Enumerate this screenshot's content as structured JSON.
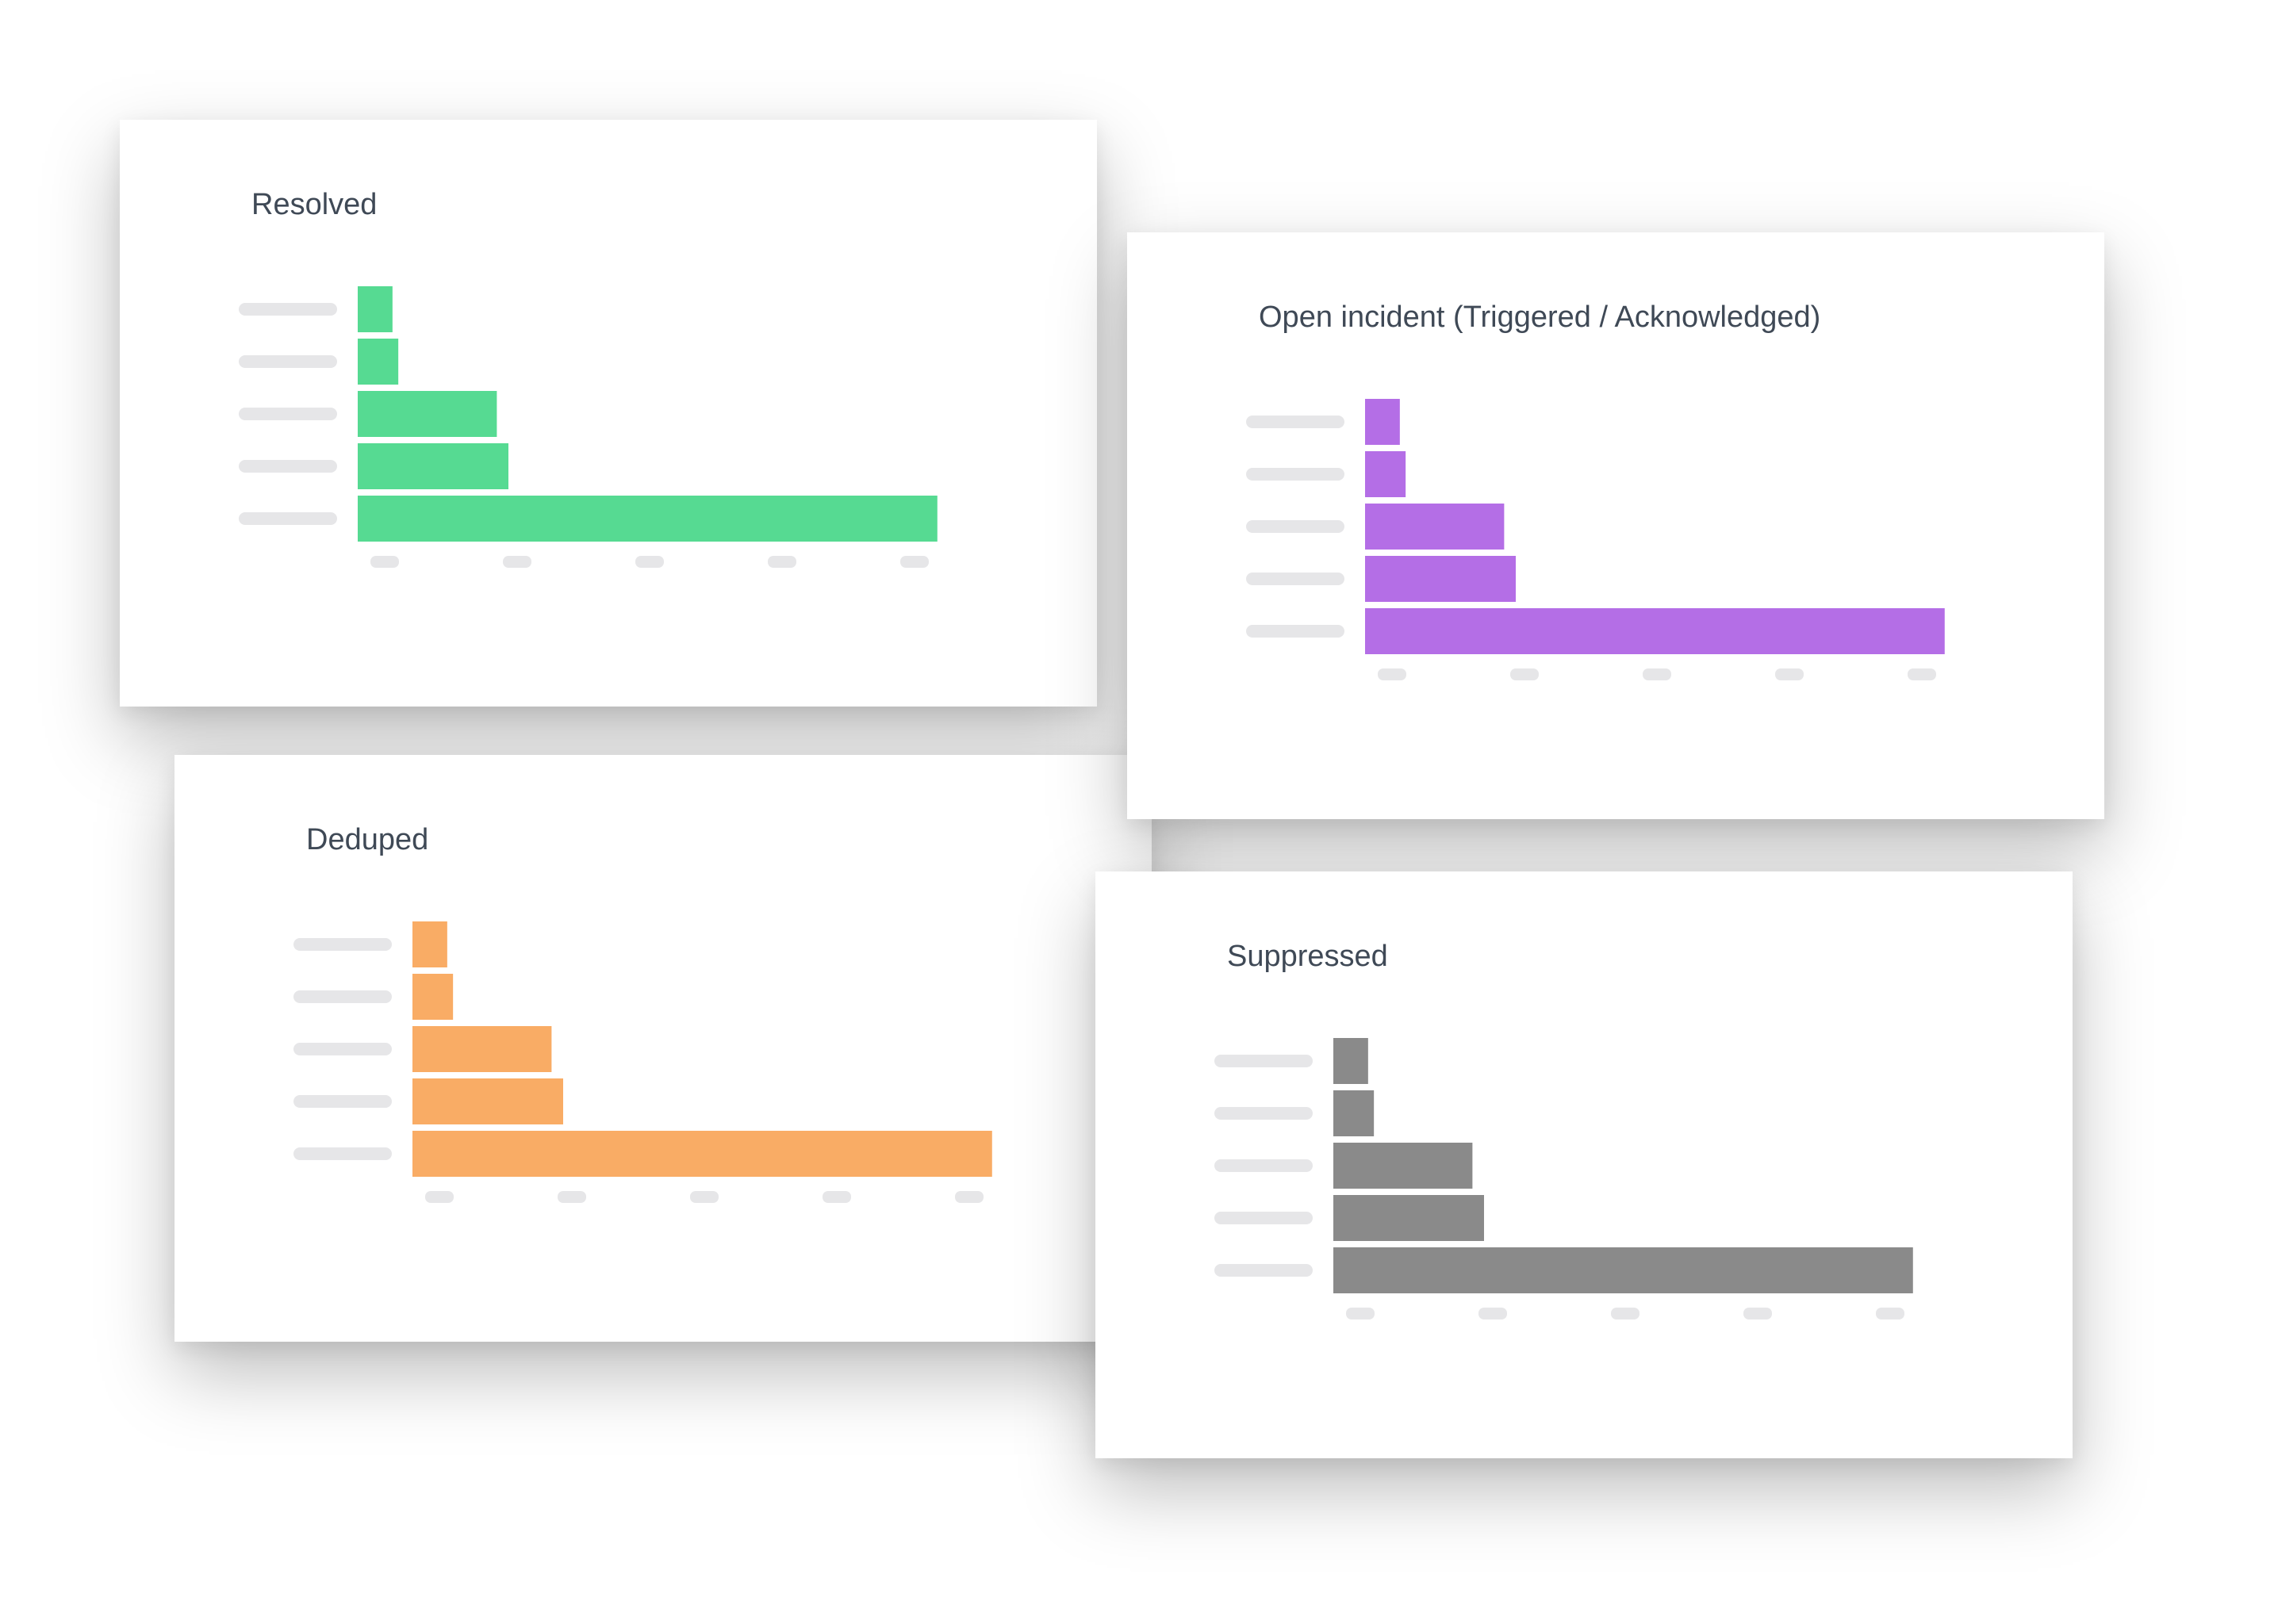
{
  "cards": [
    {
      "id": "resolved",
      "title": "Resolved",
      "color": "#56da92",
      "chart_data": {
        "type": "bar",
        "orientation": "horizontal",
        "title": "Resolved",
        "values": [
          3,
          3.5,
          12,
          13,
          50
        ],
        "xlim": [
          0,
          52
        ],
        "grid": false
      }
    },
    {
      "id": "open",
      "title": "Open incident (Triggered / Acknowledged)",
      "color": "#b46ee6",
      "chart_data": {
        "type": "bar",
        "orientation": "horizontal",
        "title": "Open incident (Triggered / Acknowledged)",
        "values": [
          3,
          3.5,
          12,
          13,
          50
        ],
        "xlim": [
          0,
          52
        ],
        "grid": false
      }
    },
    {
      "id": "deduped",
      "title": "Deduped",
      "color": "#f9ac65",
      "chart_data": {
        "type": "bar",
        "orientation": "horizontal",
        "title": "Deduped",
        "values": [
          3,
          3.5,
          12,
          13,
          50
        ],
        "xlim": [
          0,
          52
        ],
        "grid": false
      }
    },
    {
      "id": "suppressed",
      "title": "Suppressed",
      "color": "#8a8a8a",
      "chart_data": {
        "type": "bar",
        "orientation": "horizontal",
        "title": "Suppressed",
        "values": [
          3,
          3.5,
          12,
          13,
          50
        ],
        "xlim": [
          0,
          52
        ],
        "grid": false
      }
    }
  ]
}
